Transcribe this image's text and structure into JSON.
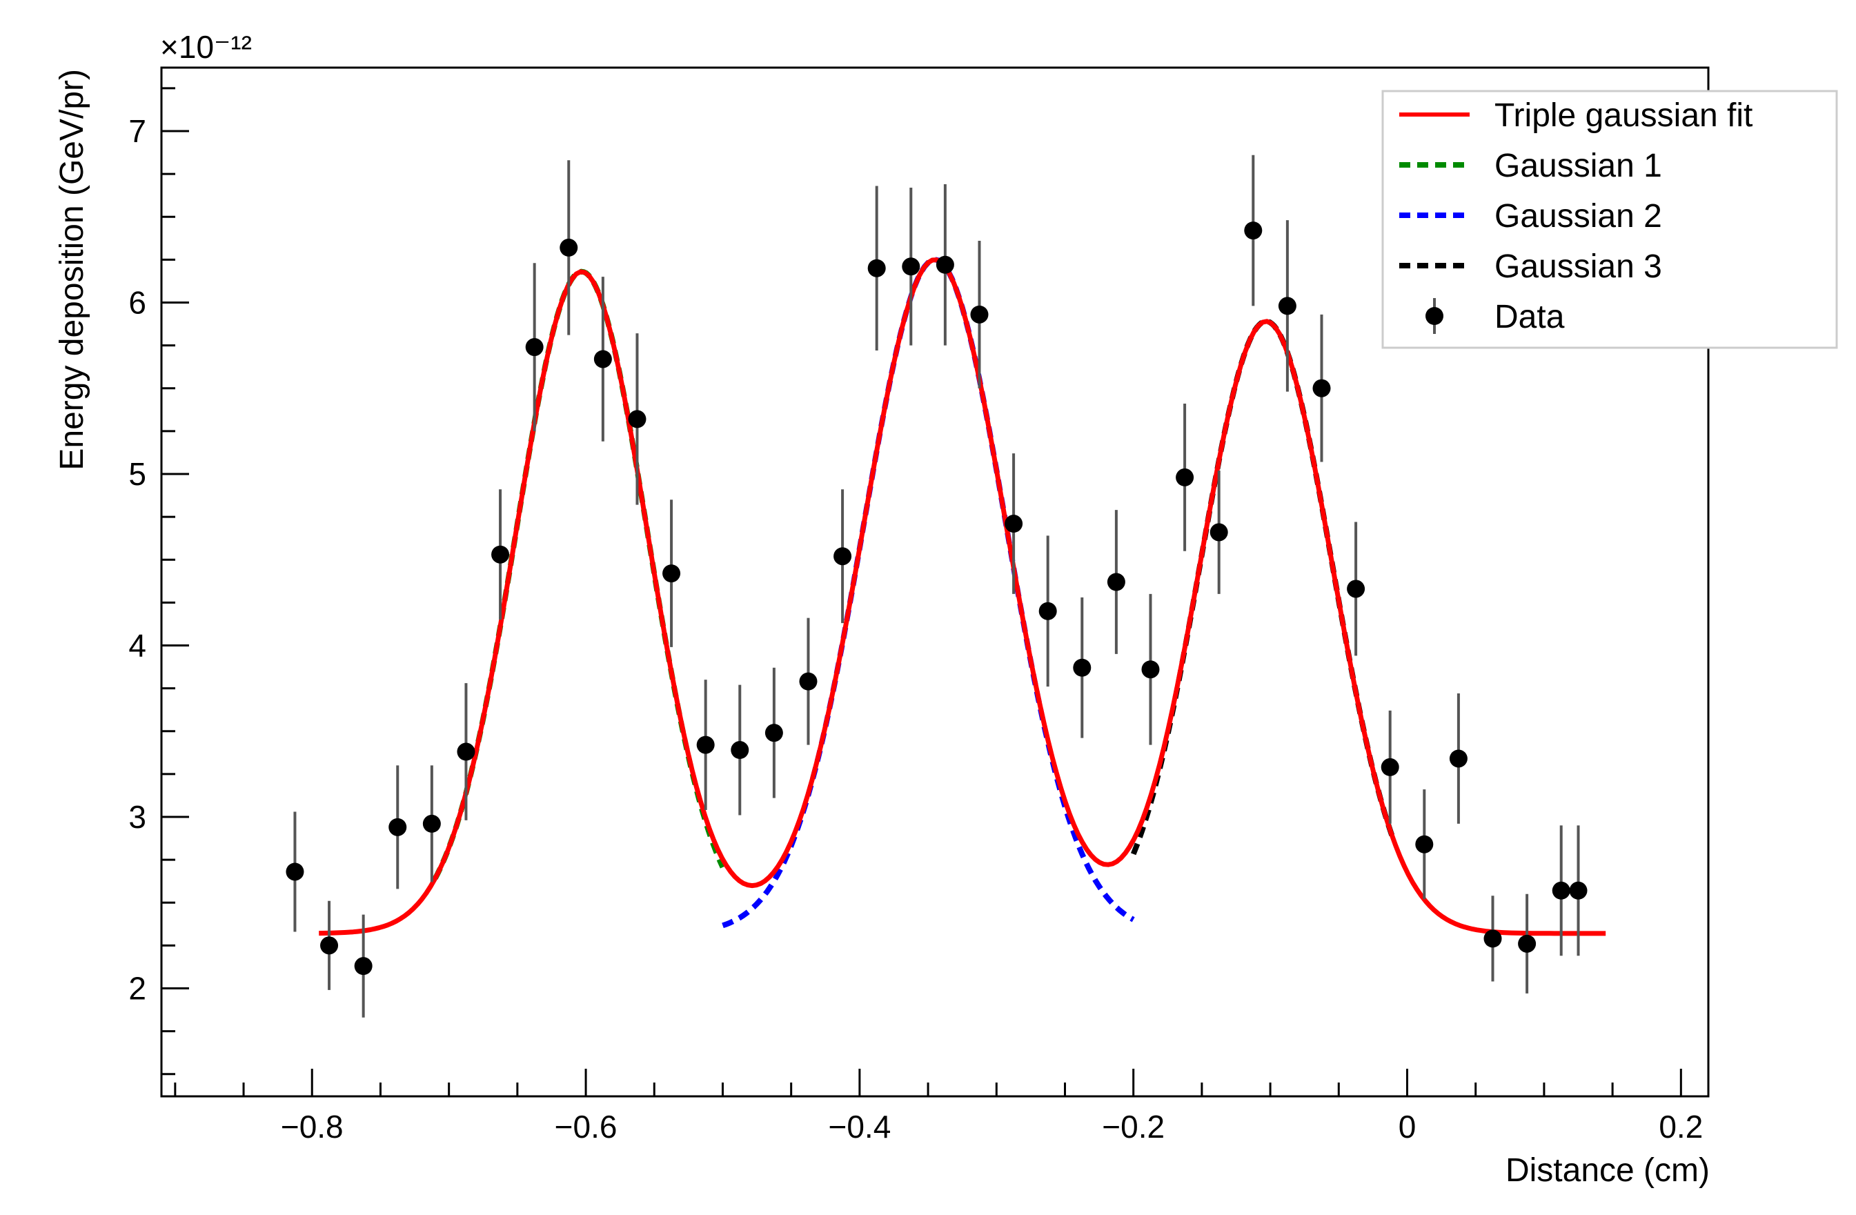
{
  "chart_data": {
    "type": "scatter",
    "title": "",
    "xlabel": "Distance (cm)",
    "ylabel": "Energy deposition (GeV/pr)",
    "y_exponent": "×10⁻¹²",
    "xlim": [
      -0.91,
      0.22
    ],
    "ylim": [
      1.37,
      7.37
    ],
    "x_ticks": [
      {
        "value": -0.8,
        "label": "−0.8"
      },
      {
        "value": -0.6,
        "label": "−0.6"
      },
      {
        "value": -0.4,
        "label": "−0.4"
      },
      {
        "value": -0.2,
        "label": "−0.2"
      },
      {
        "value": 0.0,
        "label": "0"
      },
      {
        "value": 0.2,
        "label": "0.2"
      }
    ],
    "y_ticks": [
      {
        "value": 2,
        "label": "2"
      },
      {
        "value": 3,
        "label": "3"
      },
      {
        "value": 4,
        "label": "4"
      },
      {
        "value": 5,
        "label": "5"
      },
      {
        "value": 6,
        "label": "6"
      },
      {
        "value": 7,
        "label": "7"
      }
    ],
    "grid": false,
    "legend_position": "top-right",
    "colors": {
      "fit": "#ff0000",
      "gauss1": "#008a00",
      "gauss2": "#0000ff",
      "gauss3": "#000000",
      "data": "#000000",
      "errorbar": "#555555",
      "axis": "#000000"
    },
    "legend": [
      {
        "key": "fit",
        "label": "Triple gaussian fit",
        "style": "solid"
      },
      {
        "key": "gauss1",
        "label": "Gaussian 1",
        "style": "dashed"
      },
      {
        "key": "gauss2",
        "label": "Gaussian 2",
        "style": "dashed"
      },
      {
        "key": "gauss3",
        "label": "Gaussian 3",
        "style": "dashed"
      },
      {
        "key": "data",
        "label": "Data",
        "style": "marker"
      }
    ],
    "data_points": [
      {
        "x": -0.8125,
        "y": 2.68,
        "err": 0.35
      },
      {
        "x": -0.7875,
        "y": 2.25,
        "err": 0.26
      },
      {
        "x": -0.7625,
        "y": 2.13,
        "err": 0.3
      },
      {
        "x": -0.7375,
        "y": 2.94,
        "err": 0.36
      },
      {
        "x": -0.7125,
        "y": 2.96,
        "err": 0.34
      },
      {
        "x": -0.6875,
        "y": 3.38,
        "err": 0.4
      },
      {
        "x": -0.6625,
        "y": 4.53,
        "err": 0.38
      },
      {
        "x": -0.6375,
        "y": 5.74,
        "err": 0.49
      },
      {
        "x": -0.6125,
        "y": 6.32,
        "err": 0.51
      },
      {
        "x": -0.5875,
        "y": 5.67,
        "err": 0.48
      },
      {
        "x": -0.5625,
        "y": 5.32,
        "err": 0.5
      },
      {
        "x": -0.5375,
        "y": 4.42,
        "err": 0.43
      },
      {
        "x": -0.5125,
        "y": 3.42,
        "err": 0.38
      },
      {
        "x": -0.4875,
        "y": 3.39,
        "err": 0.38
      },
      {
        "x": -0.4625,
        "y": 3.49,
        "err": 0.38
      },
      {
        "x": -0.4375,
        "y": 3.79,
        "err": 0.37
      },
      {
        "x": -0.4125,
        "y": 4.52,
        "err": 0.39
      },
      {
        "x": -0.3875,
        "y": 6.2,
        "err": 0.48
      },
      {
        "x": -0.3625,
        "y": 6.21,
        "err": 0.46
      },
      {
        "x": -0.3375,
        "y": 6.22,
        "err": 0.47
      },
      {
        "x": -0.3125,
        "y": 5.93,
        "err": 0.43
      },
      {
        "x": -0.2875,
        "y": 4.71,
        "err": 0.41
      },
      {
        "x": -0.2625,
        "y": 4.2,
        "err": 0.44
      },
      {
        "x": -0.2375,
        "y": 3.87,
        "err": 0.41
      },
      {
        "x": -0.2125,
        "y": 4.37,
        "err": 0.42
      },
      {
        "x": -0.1875,
        "y": 3.86,
        "err": 0.44
      },
      {
        "x": -0.1625,
        "y": 4.98,
        "err": 0.43
      },
      {
        "x": -0.1375,
        "y": 4.66,
        "err": 0.36
      },
      {
        "x": -0.1125,
        "y": 6.42,
        "err": 0.44
      },
      {
        "x": -0.0875,
        "y": 5.98,
        "err": 0.5
      },
      {
        "x": -0.0625,
        "y": 5.5,
        "err": 0.43
      },
      {
        "x": -0.0375,
        "y": 4.33,
        "err": 0.39
      },
      {
        "x": -0.0125,
        "y": 3.29,
        "err": 0.33
      },
      {
        "x": 0.0125,
        "y": 2.84,
        "err": 0.32
      },
      {
        "x": 0.0375,
        "y": 3.34,
        "err": 0.38
      },
      {
        "x": 0.0625,
        "y": 2.29,
        "err": 0.25
      },
      {
        "x": 0.0875,
        "y": 2.26,
        "err": 0.29
      },
      {
        "x": 0.1125,
        "y": 2.57,
        "err": 0.38
      },
      {
        "x": 0.125,
        "y": 2.57,
        "err": 0.38
      }
    ],
    "fit_model": {
      "baseline": 2.32,
      "gaussians": [
        {
          "amplitude": 3.86,
          "mean": -0.603,
          "sigma": 0.048
        },
        {
          "amplitude": 3.93,
          "mean": -0.345,
          "sigma": 0.052
        },
        {
          "amplitude": 3.57,
          "mean": -0.103,
          "sigma": 0.048
        }
      ],
      "fit_range": [
        -0.795,
        0.145
      ],
      "component_ranges": [
        [
          -0.71,
          -0.5
        ],
        [
          -0.5,
          -0.2
        ],
        [
          -0.2,
          -0.01
        ]
      ]
    }
  }
}
